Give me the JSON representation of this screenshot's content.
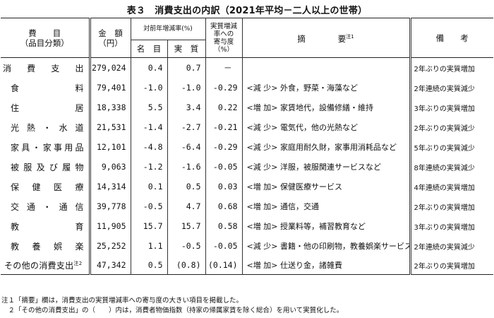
{
  "title": "表３　消費支出の内訳（2021年平均－二人以上の世帯）",
  "header": {
    "item_line1": "費　　目",
    "item_line2": "（品目分類）",
    "amount_line1": "金　額",
    "amount_line2": "（円）",
    "yoy_label": "対前年増減率(%)",
    "nominal": "名　目",
    "real": "実　質",
    "contrib_lines": [
      "実質増減",
      "率への",
      "寄与度",
      "（%）"
    ],
    "summary_label": "摘　　　　要",
    "summary_note_mark": "注1",
    "remarks_label": "備　　考"
  },
  "rows": [
    {
      "item": "消 費 支 出",
      "amount": "279,024",
      "nominal": "0.4",
      "real": "0.7",
      "contrib": "－",
      "tag": "",
      "summary": "",
      "note": "2年ぶりの実質増加"
    },
    {
      "item": "食料",
      "amount": "79,401",
      "nominal": "-1.0",
      "real": "-1.0",
      "contrib": "-0.29",
      "tag": "<減 少>",
      "summary": "外食，野菜・海藻など",
      "note": "2年連続の実質減少"
    },
    {
      "item": "住居",
      "amount": "18,338",
      "nominal": "5.5",
      "real": "3.4",
      "contrib": "0.22",
      "tag": "<増 加>",
      "summary": "家賃地代，設備修繕・維持",
      "note": "3年ぶりの実質増加"
    },
    {
      "item": "光熱・水道",
      "amount": "21,531",
      "nominal": "-1.4",
      "real": "-2.7",
      "contrib": "-0.21",
      "tag": "<減 少>",
      "summary": "電気代，他の光熱など",
      "note": "2年ぶりの実質減少"
    },
    {
      "item": "家具・家事用品",
      "amount": "12,101",
      "nominal": "-4.8",
      "real": "-6.4",
      "contrib": "-0.29",
      "tag": "<減 少>",
      "summary": "家庭用耐久財，家事用消耗品など",
      "note": "5年ぶりの実質減少"
    },
    {
      "item": "被服及び履物",
      "amount": "9,063",
      "nominal": "-1.2",
      "real": "-1.6",
      "contrib": "-0.05",
      "tag": "<減 少>",
      "summary": "洋服，被服関連サービスなど",
      "note": "8年連続の実質減少"
    },
    {
      "item": "保健医療",
      "amount": "14,314",
      "nominal": "0.1",
      "real": "0.5",
      "contrib": "0.03",
      "tag": "<増 加>",
      "summary": "保健医療サービス",
      "note": "4年連続の実質増加"
    },
    {
      "item": "交通・通信",
      "amount": "39,778",
      "nominal": "-0.5",
      "real": "4.7",
      "contrib": "0.68",
      "tag": "<増 加>",
      "summary": "通信，交通",
      "note": "2年ぶりの実質増加"
    },
    {
      "item": "教育",
      "amount": "11,905",
      "nominal": "15.7",
      "real": "15.7",
      "contrib": "0.58",
      "tag": "<増 加>",
      "summary": "授業料等，補習教育など",
      "note": "3年ぶりの実質増加"
    },
    {
      "item": "教養娯楽",
      "amount": "25,252",
      "nominal": "1.1",
      "real": "-0.5",
      "contrib": "-0.05",
      "tag": "<減 少>",
      "summary": "書籍・他の印刷物，教養娯楽サービス",
      "note": "2年連続の実質減少"
    },
    {
      "item": "その他の消費支出",
      "item_note": "注2",
      "amount": "47,342",
      "nominal": "0.5",
      "real": "(0.8)",
      "contrib": "(0.14)",
      "tag": "<増 加>",
      "summary": "仕送り金，諸雑費",
      "note": "2年ぶりの実質増加"
    }
  ],
  "footnotes": [
    "注１「摘要」欄は，消費支出の実質増減率への寄与度の大きい項目を掲載した。",
    "　２「その他の消費支出」の（　　）内は，消費者物価指数（持家の帰属家賃を除く総合）を用いて実質化した。"
  ]
}
